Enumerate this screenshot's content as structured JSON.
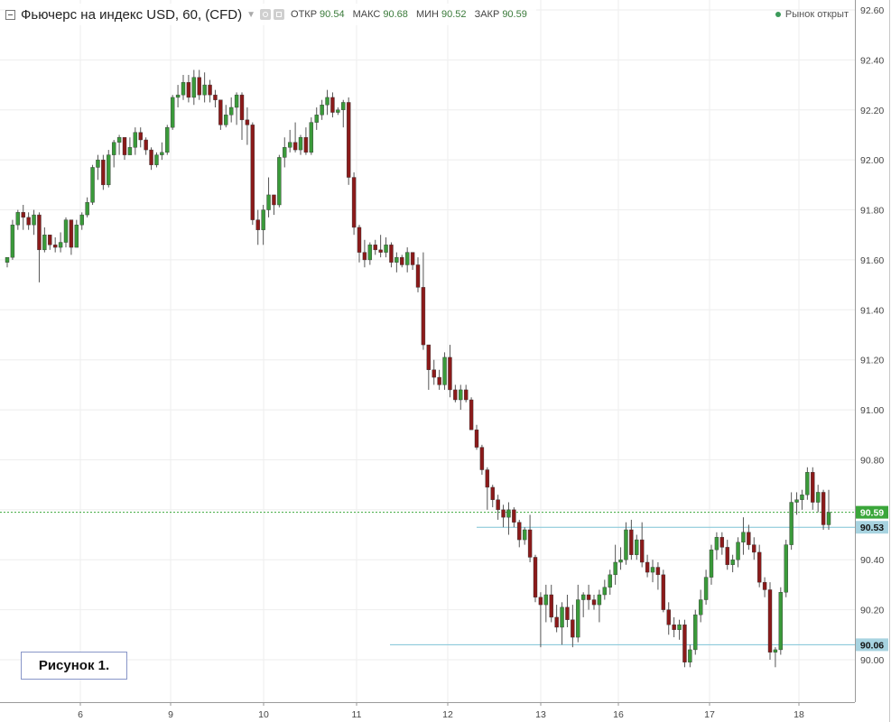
{
  "header": {
    "title": "Фьючерс на индекс USD, 60, (CFD)",
    "ohlc": [
      {
        "label": "ОТКР",
        "value": "90.54"
      },
      {
        "label": "МАКС",
        "value": "90.68"
      },
      {
        "label": "МИН",
        "value": "90.52"
      },
      {
        "label": "ЗАКР",
        "value": "90.59"
      }
    ],
    "market_status": "Рынок открыт"
  },
  "figure_label": "Рисунок 1.",
  "colors": {
    "up": "#3a9a3a",
    "down": "#8b1a1a",
    "hline": "#7ec3d6",
    "current": "#3aa63a",
    "grid": "#eeeeee"
  },
  "chart_data": {
    "type": "candlestick",
    "title": "Фьючерс на индекс USD, 60, (CFD)",
    "y_axis": {
      "ticks": [
        "92.60",
        "92.40",
        "92.20",
        "92.00",
        "91.80",
        "91.60",
        "91.40",
        "91.20",
        "91.00",
        "90.80",
        "90.60",
        "90.40",
        "90.20",
        "90.00"
      ],
      "ylim": [
        89.8,
        92.63
      ],
      "side": "right"
    },
    "x_axis": {
      "ticks": [
        "6",
        "9",
        "10",
        "11",
        "12",
        "13",
        "16",
        "17",
        "18"
      ]
    },
    "grid": true,
    "horizontal_lines": [
      {
        "price": 90.59,
        "label": "90.59",
        "style": "dotted",
        "role": "current"
      },
      {
        "price": 90.53,
        "label": "90.53",
        "style": "solid"
      },
      {
        "price": 90.06,
        "label": "90.06",
        "style": "solid"
      }
    ],
    "candles": [
      [
        91.59,
        91.61,
        91.57,
        91.61
      ],
      [
        91.61,
        91.76,
        91.6,
        91.74
      ],
      [
        91.74,
        91.8,
        91.72,
        91.79
      ],
      [
        91.79,
        91.82,
        91.72,
        91.77
      ],
      [
        91.77,
        91.79,
        91.72,
        91.74
      ],
      [
        91.74,
        91.8,
        91.7,
        91.78
      ],
      [
        91.78,
        91.79,
        91.51,
        91.64
      ],
      [
        91.64,
        91.73,
        91.63,
        91.7
      ],
      [
        91.7,
        91.7,
        91.64,
        91.66
      ],
      [
        91.66,
        91.69,
        91.63,
        91.65
      ],
      [
        91.65,
        91.71,
        91.63,
        91.67
      ],
      [
        91.67,
        91.77,
        91.65,
        91.76
      ],
      [
        91.76,
        91.76,
        91.62,
        91.65
      ],
      [
        91.65,
        91.76,
        91.65,
        91.74
      ],
      [
        91.74,
        91.79,
        91.72,
        91.78
      ],
      [
        91.78,
        91.85,
        91.77,
        91.83
      ],
      [
        91.83,
        91.98,
        91.82,
        91.97
      ],
      [
        91.97,
        92.02,
        91.92,
        92.0
      ],
      [
        92.0,
        92.02,
        91.88,
        91.9
      ],
      [
        91.9,
        92.04,
        91.89,
        92.02
      ],
      [
        92.02,
        92.08,
        91.97,
        92.07
      ],
      [
        92.07,
        92.1,
        92.02,
        92.09
      ],
      [
        92.09,
        92.09,
        92.0,
        92.02
      ],
      [
        92.02,
        92.09,
        92.02,
        92.05
      ],
      [
        92.05,
        92.13,
        92.02,
        92.11
      ],
      [
        92.11,
        92.13,
        92.05,
        92.08
      ],
      [
        92.08,
        92.09,
        92.02,
        92.04
      ],
      [
        92.04,
        92.05,
        91.96,
        91.98
      ],
      [
        91.98,
        92.03,
        91.97,
        92.02
      ],
      [
        92.02,
        92.07,
        92.0,
        92.03
      ],
      [
        92.03,
        92.14,
        92.02,
        92.13
      ],
      [
        92.13,
        92.26,
        92.12,
        92.25
      ],
      [
        92.25,
        92.3,
        92.21,
        92.26
      ],
      [
        92.26,
        92.34,
        92.24,
        92.31
      ],
      [
        92.31,
        92.34,
        92.23,
        92.25
      ],
      [
        92.25,
        92.36,
        92.22,
        92.33
      ],
      [
        92.33,
        92.36,
        92.24,
        92.26
      ],
      [
        92.26,
        92.35,
        92.23,
        92.3
      ],
      [
        92.3,
        92.32,
        92.23,
        92.26
      ],
      [
        92.26,
        92.28,
        92.21,
        92.24
      ],
      [
        92.24,
        92.24,
        92.12,
        92.14
      ],
      [
        92.14,
        92.22,
        92.13,
        92.18
      ],
      [
        92.18,
        92.25,
        92.15,
        92.21
      ],
      [
        92.21,
        92.27,
        92.14,
        92.26
      ],
      [
        92.26,
        92.27,
        92.08,
        92.16
      ],
      [
        92.16,
        92.21,
        92.06,
        92.14
      ],
      [
        92.14,
        92.15,
        91.74,
        91.76
      ],
      [
        91.76,
        91.8,
        91.66,
        91.72
      ],
      [
        91.72,
        91.82,
        91.66,
        91.8
      ],
      [
        91.8,
        91.93,
        91.77,
        91.86
      ],
      [
        91.86,
        91.86,
        91.78,
        91.82
      ],
      [
        91.82,
        92.02,
        91.81,
        92.01
      ],
      [
        92.01,
        92.09,
        91.97,
        92.05
      ],
      [
        92.05,
        92.12,
        92.03,
        92.07
      ],
      [
        92.07,
        92.15,
        92.03,
        92.04
      ],
      [
        92.04,
        92.1,
        92.02,
        92.09
      ],
      [
        92.09,
        92.13,
        92.02,
        92.03
      ],
      [
        92.03,
        92.17,
        92.02,
        92.15
      ],
      [
        92.15,
        92.21,
        92.12,
        92.18
      ],
      [
        92.18,
        92.24,
        92.16,
        92.22
      ],
      [
        92.22,
        92.28,
        92.18,
        92.25
      ],
      [
        92.25,
        92.27,
        92.17,
        92.19
      ],
      [
        92.19,
        92.21,
        92.18,
        92.2
      ],
      [
        92.2,
        92.24,
        92.13,
        92.23
      ],
      [
        92.23,
        92.25,
        91.9,
        91.93
      ],
      [
        91.93,
        91.95,
        91.7,
        91.73
      ],
      [
        91.73,
        91.74,
        91.59,
        91.63
      ],
      [
        91.63,
        91.68,
        91.57,
        91.6
      ],
      [
        91.6,
        91.67,
        91.58,
        91.66
      ],
      [
        91.66,
        91.68,
        91.62,
        91.64
      ],
      [
        91.64,
        91.7,
        91.61,
        91.63
      ],
      [
        91.63,
        91.69,
        91.61,
        91.66
      ],
      [
        91.66,
        91.67,
        91.57,
        91.59
      ],
      [
        91.59,
        91.63,
        91.55,
        91.61
      ],
      [
        91.61,
        91.62,
        91.57,
        91.58
      ],
      [
        91.58,
        91.65,
        91.55,
        91.63
      ],
      [
        91.63,
        91.63,
        91.56,
        91.58
      ],
      [
        91.58,
        91.61,
        91.47,
        91.49
      ],
      [
        91.49,
        91.63,
        91.24,
        91.26
      ],
      [
        91.26,
        91.26,
        91.08,
        91.16
      ],
      [
        91.16,
        91.2,
        91.1,
        91.13
      ],
      [
        91.13,
        91.16,
        91.08,
        91.1
      ],
      [
        91.1,
        91.23,
        91.08,
        91.21
      ],
      [
        91.21,
        91.26,
        91.05,
        91.08
      ],
      [
        91.08,
        91.1,
        91.03,
        91.04
      ],
      [
        91.04,
        91.1,
        91.0,
        91.08
      ],
      [
        91.08,
        91.1,
        91.03,
        91.04
      ],
      [
        91.04,
        91.05,
        90.92,
        90.92
      ],
      [
        90.92,
        90.94,
        90.84,
        90.85
      ],
      [
        90.85,
        90.86,
        90.74,
        90.76
      ],
      [
        90.76,
        90.77,
        90.6,
        90.69
      ],
      [
        90.69,
        90.7,
        90.61,
        90.64
      ],
      [
        90.64,
        90.66,
        90.56,
        90.6
      ],
      [
        90.6,
        90.62,
        90.53,
        90.57
      ],
      [
        90.57,
        90.63,
        90.5,
        90.6
      ],
      [
        90.6,
        90.61,
        90.53,
        90.55
      ],
      [
        90.55,
        90.56,
        90.45,
        90.48
      ],
      [
        90.48,
        90.53,
        90.46,
        90.52
      ],
      [
        90.52,
        90.58,
        90.39,
        90.41
      ],
      [
        90.41,
        90.42,
        90.23,
        90.25
      ],
      [
        90.25,
        90.27,
        90.05,
        90.22
      ],
      [
        90.22,
        90.3,
        90.15,
        90.26
      ],
      [
        90.26,
        90.3,
        90.15,
        90.17
      ],
      [
        90.17,
        90.22,
        90.11,
        90.13
      ],
      [
        90.13,
        90.23,
        90.06,
        90.21
      ],
      [
        90.21,
        90.26,
        90.13,
        90.16
      ],
      [
        90.16,
        90.22,
        90.05,
        90.09
      ],
      [
        90.09,
        90.3,
        90.07,
        90.24
      ],
      [
        90.24,
        90.27,
        90.17,
        90.26
      ],
      [
        90.26,
        90.3,
        90.2,
        90.24
      ],
      [
        90.24,
        90.26,
        90.2,
        90.22
      ],
      [
        90.22,
        90.28,
        90.15,
        90.26
      ],
      [
        90.26,
        90.32,
        90.24,
        90.29
      ],
      [
        90.29,
        90.36,
        90.26,
        90.34
      ],
      [
        90.34,
        90.46,
        90.3,
        90.39
      ],
      [
        90.39,
        90.45,
        90.36,
        90.4
      ],
      [
        90.4,
        90.55,
        90.38,
        90.52
      ],
      [
        90.52,
        90.56,
        90.4,
        90.42
      ],
      [
        90.42,
        90.5,
        90.4,
        90.48
      ],
      [
        90.48,
        90.55,
        90.37,
        90.39
      ],
      [
        90.39,
        90.42,
        90.33,
        90.35
      ],
      [
        90.35,
        90.4,
        90.31,
        90.37
      ],
      [
        90.37,
        90.39,
        90.28,
        90.34
      ],
      [
        90.34,
        90.36,
        90.19,
        90.2
      ],
      [
        90.2,
        90.23,
        90.1,
        90.14
      ],
      [
        90.14,
        90.17,
        90.09,
        90.12
      ],
      [
        90.12,
        90.16,
        90.08,
        90.14
      ],
      [
        90.14,
        90.16,
        89.97,
        89.99
      ],
      [
        89.99,
        90.06,
        89.97,
        90.04
      ],
      [
        90.04,
        90.2,
        90.02,
        90.18
      ],
      [
        90.18,
        90.28,
        90.15,
        90.24
      ],
      [
        90.24,
        90.36,
        90.22,
        90.33
      ],
      [
        90.33,
        90.46,
        90.3,
        90.44
      ],
      [
        90.44,
        90.51,
        90.4,
        90.49
      ],
      [
        90.49,
        90.51,
        90.42,
        90.45
      ],
      [
        90.45,
        90.48,
        90.36,
        90.38
      ],
      [
        90.38,
        90.42,
        90.35,
        90.4
      ],
      [
        90.4,
        90.49,
        90.37,
        90.47
      ],
      [
        90.47,
        90.57,
        90.42,
        90.51
      ],
      [
        90.51,
        90.54,
        90.44,
        90.46
      ],
      [
        90.46,
        90.49,
        90.4,
        90.43
      ],
      [
        90.43,
        90.46,
        90.29,
        90.31
      ],
      [
        90.31,
        90.33,
        90.25,
        90.28
      ],
      [
        90.28,
        90.31,
        90.0,
        90.03
      ],
      [
        90.03,
        90.05,
        89.97,
        90.04
      ],
      [
        90.04,
        90.29,
        90.02,
        90.27
      ],
      [
        90.27,
        90.48,
        90.25,
        90.46
      ],
      [
        90.46,
        90.67,
        90.44,
        90.63
      ],
      [
        90.63,
        90.67,
        90.58,
        90.64
      ],
      [
        90.64,
        90.68,
        90.6,
        90.66
      ],
      [
        90.66,
        90.77,
        90.64,
        90.75
      ],
      [
        90.75,
        90.77,
        90.6,
        90.63
      ],
      [
        90.63,
        90.7,
        90.59,
        90.67
      ],
      [
        90.67,
        90.68,
        90.52,
        90.54
      ],
      [
        90.54,
        90.68,
        90.52,
        90.59
      ]
    ]
  }
}
